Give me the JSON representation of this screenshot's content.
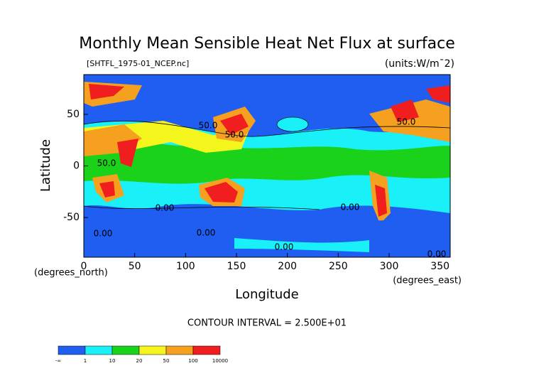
{
  "chart_data": {
    "type": "contour",
    "title": "Monthly Mean Sensible Heat Net Flux at surface",
    "subtitle": "[SHTFL_1975-01_NCEP.nc]",
    "units": "(units:W/m¯2)",
    "xlabel": "Longitude",
    "ylabel": "Latitude",
    "xunit": "(degrees_east)",
    "yunit": "(degrees_north)",
    "xlim": [
      0,
      360
    ],
    "xticks": [
      0,
      50,
      100,
      150,
      200,
      250,
      300,
      350
    ],
    "ylim": [
      -88.5,
      88.5
    ],
    "yticks": [
      -50,
      0,
      50
    ],
    "annotations": [
      "50.0",
      "50.0",
      "50.0",
      "50.0",
      "0.00",
      "0.00",
      "0.00",
      "0.00",
      "0.00",
      "0.00"
    ],
    "footer": "CONTOUR INTERVAL = 2.500E+01",
    "colorbar": {
      "labels": [
        "-∞",
        "1",
        "10",
        "20",
        "50",
        "100",
        "10000"
      ],
      "colors": [
        "#1f5ef0",
        "#19f0f8",
        "#19d219",
        "#f5f51e",
        "#f5a01e",
        "#f01e1e"
      ]
    }
  }
}
